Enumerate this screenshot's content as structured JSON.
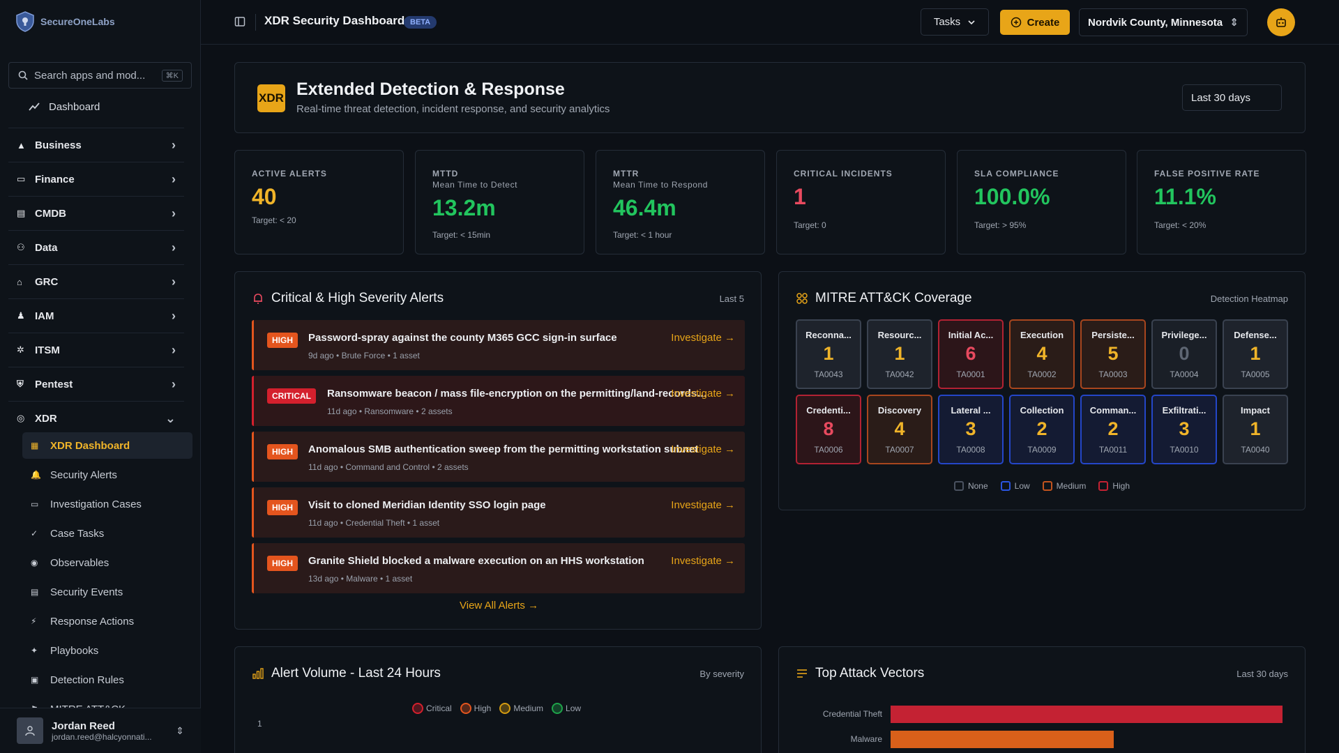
{
  "brand": {
    "name": "SecureOneLabs"
  },
  "sidebar": {
    "search_placeholder": "Search apps and mod...",
    "search_shortcut": "⌘K",
    "dashboard_label": "Dashboard",
    "groups": [
      "Business",
      "Finance",
      "CMDB",
      "Data",
      "GRC",
      "IAM",
      "ITSM",
      "Pentest",
      "XDR"
    ],
    "xdr_items": [
      "XDR Dashboard",
      "Security Alerts",
      "Investigation Cases",
      "Case Tasks",
      "Observables",
      "Security Events",
      "Response Actions",
      "Playbooks",
      "Detection Rules",
      "MITRE ATT&CK"
    ],
    "active_item": "XDR Dashboard"
  },
  "user": {
    "name": "Jordan Reed",
    "email": "jordan.reed@halcyonnati..."
  },
  "topbar": {
    "title": "XDR Security Dashboard",
    "badge": "BETA",
    "tasks_label": "Tasks",
    "create_label": "Create",
    "county": "Nordvik County, Minnesota"
  },
  "hero": {
    "badge": "XDR",
    "title": "Extended Detection & Response",
    "subtitle": "Real-time threat detection, incident response, and security analytics",
    "range": "Last 30 days"
  },
  "kpis": [
    {
      "label": "ACTIVE ALERTS",
      "sub": "",
      "value": "40",
      "target": "Target: < 20",
      "color": "#f0b429"
    },
    {
      "label": "MTTD",
      "sub": "Mean Time to Detect",
      "value": "13.2m",
      "target": "Target: < 15min",
      "color": "#22c55e"
    },
    {
      "label": "MTTR",
      "sub": "Mean Time to Respond",
      "value": "46.4m",
      "target": "Target: < 1 hour",
      "color": "#22c55e"
    },
    {
      "label": "CRITICAL INCIDENTS",
      "sub": "",
      "value": "1",
      "target": "Target: 0",
      "color": "#e84a5f"
    },
    {
      "label": "SLA COMPLIANCE",
      "sub": "",
      "value": "100.0%",
      "target": "Target: > 95%",
      "color": "#22c55e"
    },
    {
      "label": "FALSE POSITIVE RATE",
      "sub": "",
      "value": "11.1%",
      "target": "Target: < 20%",
      "color": "#22c55e"
    }
  ],
  "alerts_panel": {
    "title": "Critical & High Severity Alerts",
    "right": "Last 5",
    "investigate_label": "Investigate →",
    "view_all": "View All Alerts →",
    "items": [
      {
        "severity": "HIGH",
        "title": "Password-spray against the county M365 GCC sign-in surface",
        "age": "9d ago",
        "category": "Brute Force",
        "assets": "1 asset"
      },
      {
        "severity": "CRITICAL",
        "title": "Ransomware beacon / mass file-encryption on the permitting/land-records file server",
        "age": "11d ago",
        "category": "Ransomware",
        "assets": "2 assets"
      },
      {
        "severity": "HIGH",
        "title": "Anomalous SMB authentication sweep from the permitting workstation subnet",
        "age": "11d ago",
        "category": "Command and Control",
        "assets": "2 assets"
      },
      {
        "severity": "HIGH",
        "title": "Visit to cloned Meridian Identity SSO login page",
        "age": "11d ago",
        "category": "Credential Theft",
        "assets": "1 asset"
      },
      {
        "severity": "HIGH",
        "title": "Granite Shield blocked a malware execution on an HHS workstation",
        "age": "13d ago",
        "category": "Malware",
        "assets": "1 asset"
      }
    ]
  },
  "mitre": {
    "title": "MITRE ATT&CK Coverage",
    "right": "Detection Heatmap",
    "tactics": [
      {
        "name": "Reconna...",
        "count": "1",
        "id": "TA0043",
        "level": "low"
      },
      {
        "name": "Resourc...",
        "count": "1",
        "id": "TA0042",
        "level": "low"
      },
      {
        "name": "Initial Ac...",
        "count": "6",
        "id": "TA0001",
        "level": "high"
      },
      {
        "name": "Execution",
        "count": "4",
        "id": "TA0002",
        "level": "med"
      },
      {
        "name": "Persiste...",
        "count": "5",
        "id": "TA0003",
        "level": "med"
      },
      {
        "name": "Privilege...",
        "count": "0",
        "id": "TA0004",
        "level": "none"
      },
      {
        "name": "Defense...",
        "count": "1",
        "id": "TA0005",
        "level": "low"
      },
      {
        "name": "Credenti...",
        "count": "8",
        "id": "TA0006",
        "level": "high"
      },
      {
        "name": "Discovery",
        "count": "4",
        "id": "TA0007",
        "level": "med"
      },
      {
        "name": "Lateral ...",
        "count": "3",
        "id": "TA0008",
        "level": "blue"
      },
      {
        "name": "Collection",
        "count": "2",
        "id": "TA0009",
        "level": "blue"
      },
      {
        "name": "Comman...",
        "count": "2",
        "id": "TA0011",
        "level": "blue"
      },
      {
        "name": "Exfiltrati...",
        "count": "3",
        "id": "TA0010",
        "level": "blue"
      },
      {
        "name": "Impact",
        "count": "1",
        "id": "TA0040",
        "level": "low"
      }
    ],
    "legend": [
      {
        "label": "None",
        "color": "#4a5260"
      },
      {
        "label": "Low",
        "color": "#2a55e0"
      },
      {
        "label": "Medium",
        "color": "#c2541e"
      },
      {
        "label": "High",
        "color": "#c42233"
      }
    ]
  },
  "volume": {
    "title": "Alert Volume - Last 24 Hours",
    "right": "By severity",
    "legend": [
      {
        "label": "Critical",
        "color": "#d4202d"
      },
      {
        "label": "High",
        "color": "#e4551e"
      },
      {
        "label": "Medium",
        "color": "#d49b10"
      },
      {
        "label": "Low",
        "color": "#1fa34a"
      }
    ],
    "y_tick": "1"
  },
  "vectors": {
    "title": "Top Attack Vectors",
    "right": "Last 30 days",
    "items": [
      {
        "label": "Credential Theft",
        "value": 1.0,
        "color": "#c42233"
      },
      {
        "label": "Malware",
        "value": 0.57,
        "color": "#d9601a"
      }
    ]
  }
}
